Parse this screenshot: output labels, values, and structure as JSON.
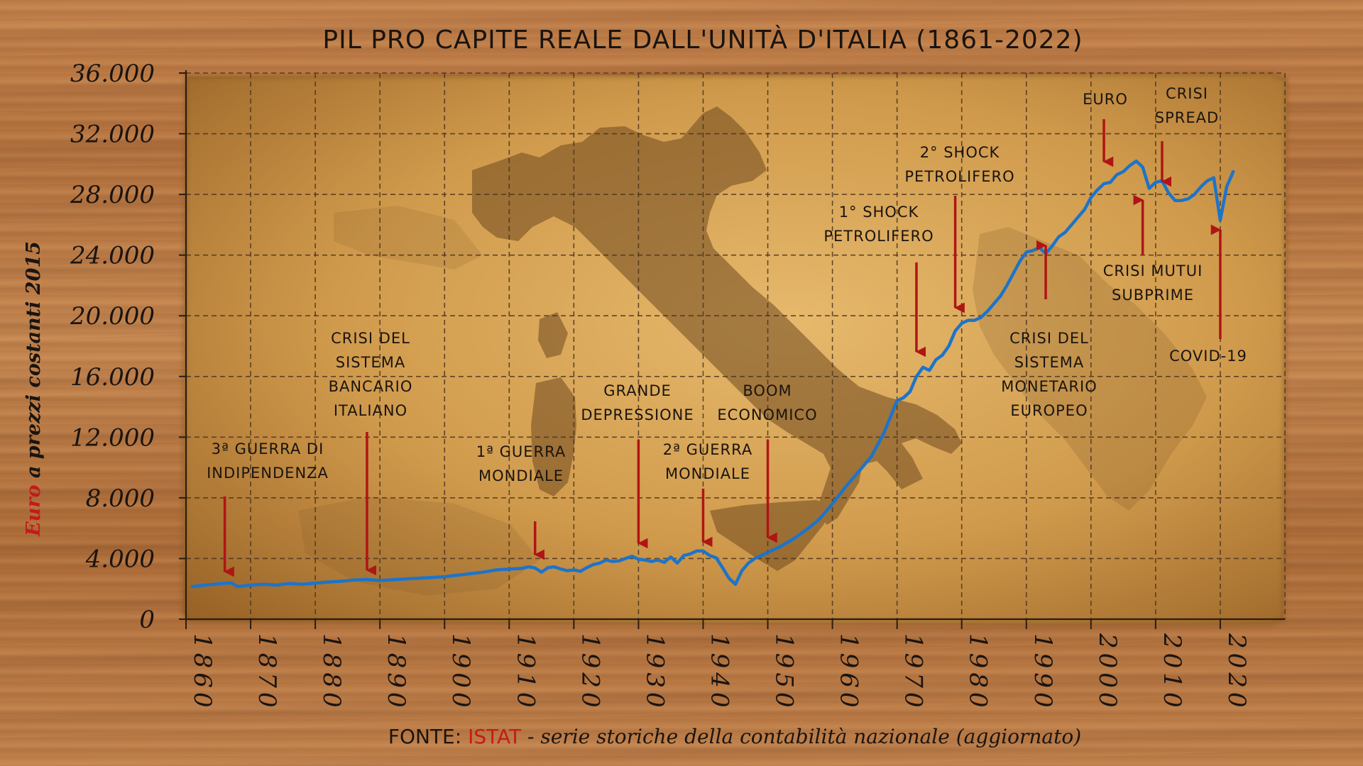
{
  "colors": {
    "line": "#1d74c9",
    "arrow": "#b01515",
    "text": "#1a1410",
    "accent_red": "#c41a1a",
    "grid": "#4a3420",
    "parchment_light": "#e2b468",
    "parchment_dark": "#a3702e",
    "map": "#7a5326"
  },
  "chart_data": {
    "type": "line",
    "title": "PIL PRO CAPITE REALE DALL'UNITÀ D'ITALIA (1861-2022)",
    "ylabel_parts": [
      "Euro",
      " a prezzi costanti 2015"
    ],
    "xlabel": "",
    "xlim": [
      1860,
      2030
    ],
    "ylim": [
      0,
      36000
    ],
    "y_ticks": [
      0,
      4000,
      8000,
      12000,
      16000,
      20000,
      24000,
      28000,
      32000,
      36000
    ],
    "y_tick_labels": [
      "0",
      "4.000",
      "8.000",
      "12.000",
      "16.000",
      "20.000",
      "24.000",
      "28.000",
      "32.000",
      "36.000"
    ],
    "x_ticks": [
      1860,
      1870,
      1880,
      1890,
      1900,
      1910,
      1920,
      1930,
      1940,
      1950,
      1960,
      1970,
      1980,
      1990,
      2000,
      2010,
      2020
    ],
    "x_tick_labels": [
      "1860",
      "1870",
      "1880",
      "1890",
      "1900",
      "1910",
      "1920",
      "1930",
      "1940",
      "1950",
      "1960",
      "1970",
      "1980",
      "1990",
      "2000",
      "2010",
      "2020"
    ],
    "grid": true,
    "series": [
      {
        "name": "",
        "x": [
          1861,
          1863,
          1865,
          1867,
          1868,
          1870,
          1872,
          1874,
          1876,
          1878,
          1880,
          1882,
          1884,
          1886,
          1888,
          1890,
          1892,
          1894,
          1896,
          1898,
          1900,
          1902,
          1904,
          1906,
          1908,
          1910,
          1912,
          1913,
          1914,
          1915,
          1916,
          1917,
          1918,
          1919,
          1920,
          1921,
          1922,
          1923,
          1924,
          1925,
          1926,
          1927,
          1928,
          1929,
          1930,
          1931,
          1932,
          1933,
          1934,
          1935,
          1936,
          1937,
          1938,
          1939,
          1940,
          1941,
          1942,
          1943,
          1944,
          1945,
          1946,
          1947,
          1948,
          1949,
          1950,
          1952,
          1954,
          1956,
          1958,
          1960,
          1962,
          1964,
          1966,
          1968,
          1970,
          1971,
          1972,
          1973,
          1974,
          1975,
          1976,
          1977,
          1978,
          1979,
          1980,
          1981,
          1982,
          1983,
          1984,
          1985,
          1986,
          1987,
          1988,
          1989,
          1990,
          1991,
          1992,
          1993,
          1994,
          1995,
          1996,
          1997,
          1998,
          1999,
          2000,
          2001,
          2002,
          2003,
          2004,
          2005,
          2006,
          2007,
          2008,
          2009,
          2010,
          2011,
          2012,
          2013,
          2014,
          2015,
          2016,
          2017,
          2018,
          2019,
          2020,
          2021,
          2022
        ],
        "values": [
          2150,
          2250,
          2330,
          2400,
          2150,
          2250,
          2300,
          2250,
          2350,
          2300,
          2380,
          2450,
          2500,
          2580,
          2620,
          2550,
          2600,
          2650,
          2700,
          2750,
          2800,
          2900,
          3000,
          3100,
          3250,
          3300,
          3350,
          3450,
          3380,
          3100,
          3400,
          3450,
          3300,
          3200,
          3250,
          3150,
          3400,
          3600,
          3700,
          3900,
          3800,
          3850,
          4000,
          4150,
          3950,
          3900,
          3800,
          3900,
          3750,
          4100,
          3700,
          4200,
          4300,
          4500,
          4500,
          4200,
          4050,
          3400,
          2700,
          2300,
          3200,
          3700,
          4000,
          4200,
          4400,
          4800,
          5300,
          5900,
          6600,
          7600,
          8700,
          9700,
          10700,
          12300,
          14400,
          14600,
          15000,
          16000,
          16600,
          16400,
          17100,
          17400,
          18000,
          19000,
          19500,
          19700,
          19700,
          19900,
          20300,
          20800,
          21300,
          22000,
          22800,
          23600,
          24200,
          24300,
          24500,
          24100,
          24600,
          25200,
          25500,
          26000,
          26500,
          27000,
          27800,
          28300,
          28700,
          28800,
          29300,
          29500,
          29900,
          30200,
          29800,
          28400,
          28800,
          28900,
          28100,
          27600,
          27600,
          27700,
          28000,
          28500,
          28900,
          29100,
          26300,
          28500,
          29500
        ]
      }
    ],
    "annotations": [
      {
        "lines": [
          "3ª GUERRA DI",
          "INDIPENDENZA"
        ],
        "year": 1866,
        "value": 2400,
        "direction": "down"
      },
      {
        "lines": [
          "CRISI DEL",
          "SISTEMA",
          "BANCARIO",
          "ITALIANO"
        ],
        "year": 1888,
        "value": 2600,
        "direction": "down"
      },
      {
        "lines": [
          "1ª GUERRA",
          "MONDIALE"
        ],
        "year": 1914,
        "value": 3380,
        "direction": "down"
      },
      {
        "lines": [
          "GRANDE",
          "DEPRESSIONE"
        ],
        "year": 1930,
        "value": 3950,
        "direction": "down"
      },
      {
        "lines": [
          "2ª GUERRA",
          "MONDIALE"
        ],
        "year": 1940,
        "value": 4500,
        "direction": "down"
      },
      {
        "lines": [
          "BOOM",
          "ECONOMICO"
        ],
        "year": 1950,
        "value": 4400,
        "direction": "down"
      },
      {
        "lines": [
          "1° SHOCK",
          "PETROLIFERO"
        ],
        "year": 1973,
        "value": 16000,
        "direction": "down"
      },
      {
        "lines": [
          "2° SHOCK",
          "PETROLIFERO"
        ],
        "year": 1979,
        "value": 19000,
        "direction": "down"
      },
      {
        "lines": [
          "CRISI DEL",
          "SISTEMA",
          "MONETARIO",
          "EUROPEO"
        ],
        "year": 1993,
        "value": 24100,
        "direction": "up"
      },
      {
        "lines": [
          "EURO"
        ],
        "year": 2002,
        "value": 28700,
        "direction": "down"
      },
      {
        "lines": [
          "CRISI",
          "SPREAD"
        ],
        "year": 2011,
        "value": 28900,
        "direction": "down"
      },
      {
        "lines": [
          "CRISI MUTUI",
          "SUBPRIME"
        ],
        "year": 2008,
        "value": 29800,
        "direction": "up"
      },
      {
        "lines": [
          "COVID-19"
        ],
        "year": 2020,
        "value": 26300,
        "direction": "up"
      }
    ]
  },
  "source": {
    "prefix": "FONTE: ",
    "org": "ISTAT",
    "rest": " - serie storiche della contabilità nazionale (aggiornato)"
  }
}
